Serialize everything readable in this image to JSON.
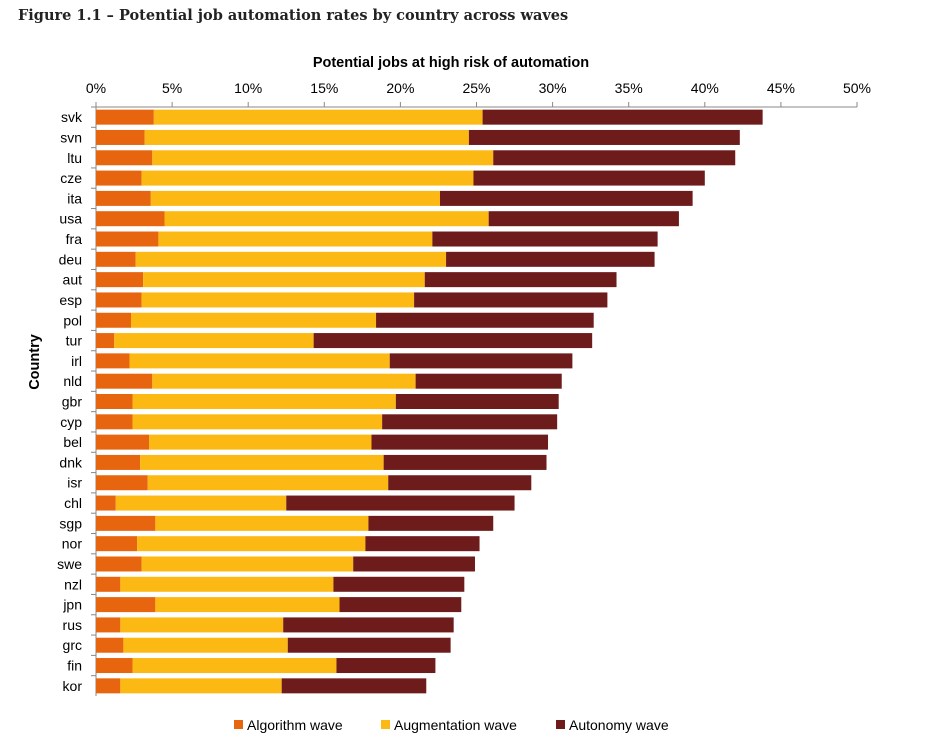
{
  "figure_title": "Figure 1.1 – Potential job automation rates by country across waves",
  "chart_data": {
    "type": "bar",
    "orientation": "horizontal",
    "stacked": true,
    "title": "",
    "xlabel": "Potential jobs at high risk of automation",
    "ylabel": "Country",
    "xlim": [
      0,
      50
    ],
    "x_ticks": [
      "0%",
      "5%",
      "10%",
      "15%",
      "20%",
      "25%",
      "30%",
      "35%",
      "40%",
      "45%",
      "50%"
    ],
    "x_axis_position": "top",
    "grid": false,
    "legend_position": "bottom",
    "categories": [
      "svk",
      "svn",
      "ltu",
      "cze",
      "ita",
      "usa",
      "fra",
      "deu",
      "aut",
      "esp",
      "pol",
      "tur",
      "irl",
      "nld",
      "gbr",
      "cyp",
      "bel",
      "dnk",
      "isr",
      "chl",
      "sgp",
      "nor",
      "swe",
      "nzl",
      "jpn",
      "rus",
      "grc",
      "fin",
      "kor"
    ],
    "series": [
      {
        "name": "Algorithm wave",
        "color": "#E8650F",
        "values": [
          3.8,
          3.2,
          3.7,
          3.0,
          3.6,
          4.5,
          4.1,
          2.6,
          3.1,
          3.0,
          2.3,
          1.2,
          2.2,
          3.7,
          2.4,
          2.4,
          3.5,
          2.9,
          3.4,
          1.3,
          3.9,
          2.7,
          3.0,
          1.6,
          3.9,
          1.6,
          1.8,
          2.4,
          1.6
        ]
      },
      {
        "name": "Augmentation wave",
        "color": "#FDB913",
        "values": [
          21.6,
          21.3,
          22.4,
          21.8,
          19.0,
          21.3,
          18.0,
          20.4,
          18.5,
          17.9,
          16.1,
          13.1,
          17.1,
          17.3,
          17.3,
          16.4,
          14.6,
          16.0,
          15.8,
          11.2,
          14.0,
          15.0,
          13.9,
          14.0,
          12.1,
          10.7,
          10.8,
          13.4,
          10.6
        ]
      },
      {
        "name": "Autonomy wave",
        "color": "#6D1B1B",
        "values": [
          18.4,
          17.8,
          15.9,
          15.2,
          16.6,
          12.5,
          14.8,
          13.7,
          12.6,
          12.7,
          14.3,
          18.3,
          12.0,
          9.6,
          10.7,
          11.5,
          11.6,
          10.7,
          9.4,
          15.0,
          8.2,
          7.5,
          8.0,
          8.6,
          8.0,
          11.2,
          10.7,
          6.5,
          9.5
        ]
      }
    ]
  }
}
